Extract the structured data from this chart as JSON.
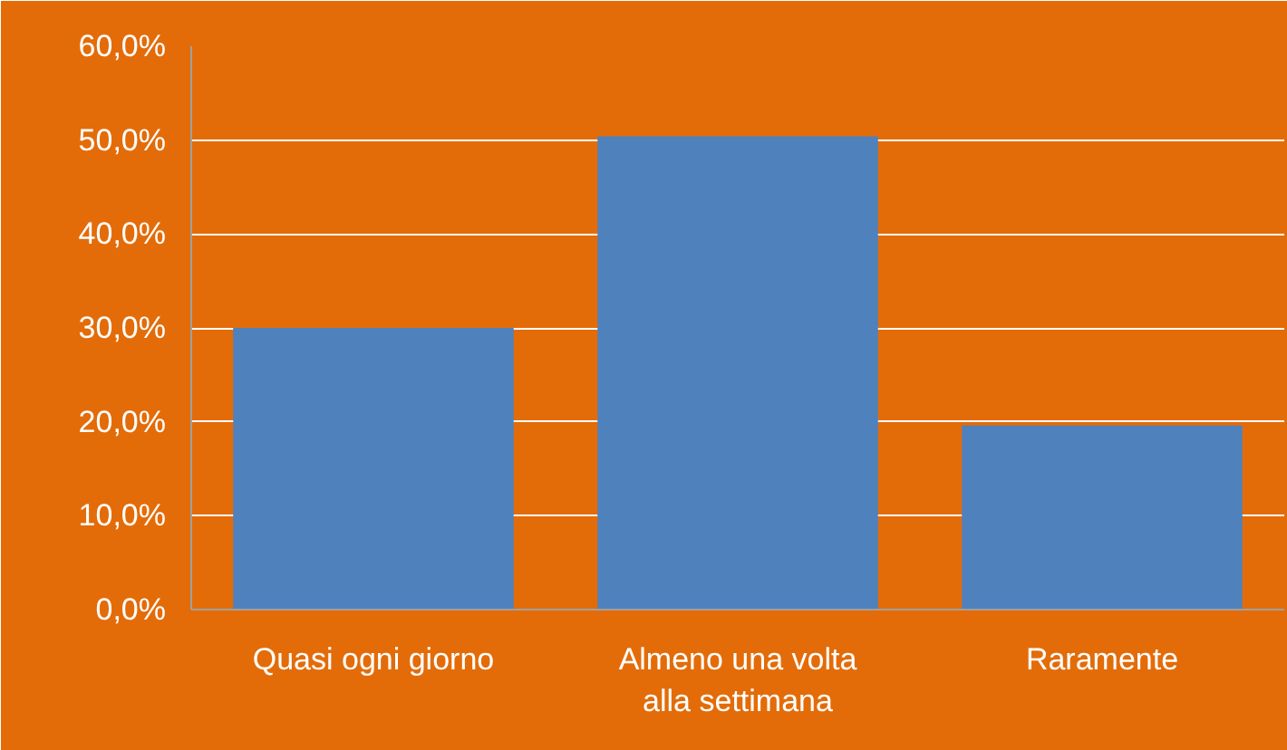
{
  "chart_data": {
    "type": "bar",
    "categories": [
      "Quasi ogni giorno",
      "Almeno una volta alla settimana",
      "Raramente"
    ],
    "values": [
      30.0,
      50.4,
      19.6
    ],
    "color": "#4f81bd",
    "ylim": [
      0,
      60
    ],
    "yticks": [
      {
        "value": 0,
        "label": "0,0%"
      },
      {
        "value": 10,
        "label": "10,0%"
      },
      {
        "value": 20,
        "label": "20,0%"
      },
      {
        "value": 30,
        "label": "30,0%"
      },
      {
        "value": 40,
        "label": "40,0%"
      },
      {
        "value": 50,
        "label": "50,0%"
      },
      {
        "value": 60,
        "label": "60,0%"
      }
    ],
    "grid": "y"
  }
}
